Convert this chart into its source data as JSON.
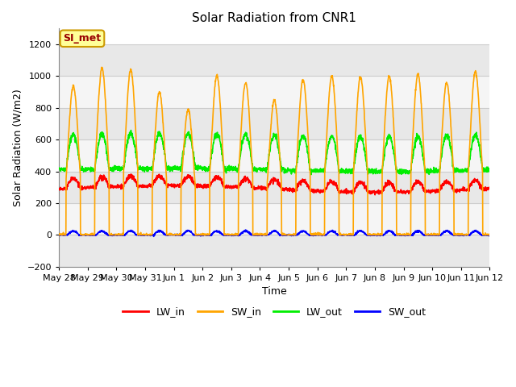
{
  "title": "Solar Radiation from CNR1",
  "xlabel": "Time",
  "ylabel": "Solar Radiation (W/m2)",
  "ylim": [
    -200,
    1300
  ],
  "yticks": [
    -200,
    0,
    200,
    400,
    600,
    800,
    1000,
    1200
  ],
  "background_color": "#ffffff",
  "plot_bg_color": "#ffffff",
  "grid_color": "#cccccc",
  "annotation_text": "SI_met",
  "annotation_bg": "#ffff99",
  "annotation_border": "#cc9900",
  "annotation_text_color": "#990000",
  "line_colors": {
    "LW_in": "#ff0000",
    "SW_in": "#ffa500",
    "LW_out": "#00ee00",
    "SW_out": "#0000ff"
  },
  "x_tick_labels": [
    "May 28",
    "May 29",
    "May 30",
    "May 31",
    "Jun 1",
    "Jun 2",
    "Jun 3",
    "Jun 4",
    "Jun 5",
    "Jun 6",
    "Jun 7",
    "Jun 8",
    "Jun 9",
    "Jun 10",
    "Jun 11",
    "Jun 12"
  ],
  "band_color_light": "#f0f0f0",
  "band_color_dark": "#e0e0e0"
}
